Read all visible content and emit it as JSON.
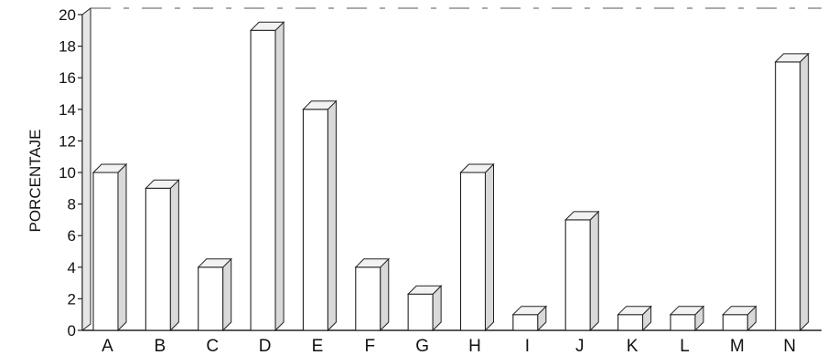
{
  "chart_data": {
    "type": "bar",
    "style": "3d",
    "categories": [
      "A",
      "B",
      "C",
      "D",
      "E",
      "F",
      "G",
      "H",
      "I",
      "J",
      "K",
      "L",
      "M",
      "N"
    ],
    "values": [
      10,
      9,
      4,
      19,
      14,
      4,
      2.3,
      10,
      1,
      7,
      1,
      1,
      1,
      17
    ],
    "title": "",
    "xlabel": "",
    "ylabel": "PORCENTAJE",
    "ylim": [
      0,
      20
    ],
    "yticks": [
      0,
      2,
      4,
      6,
      8,
      10,
      12,
      14,
      16,
      18,
      20
    ],
    "grid": false,
    "legend": "none",
    "colors": {
      "bar_front": "#ffffff",
      "bar_side": "#d9d9d9",
      "bar_top": "#f2f2f2",
      "stroke": "#222222",
      "axis": "#222222"
    }
  }
}
